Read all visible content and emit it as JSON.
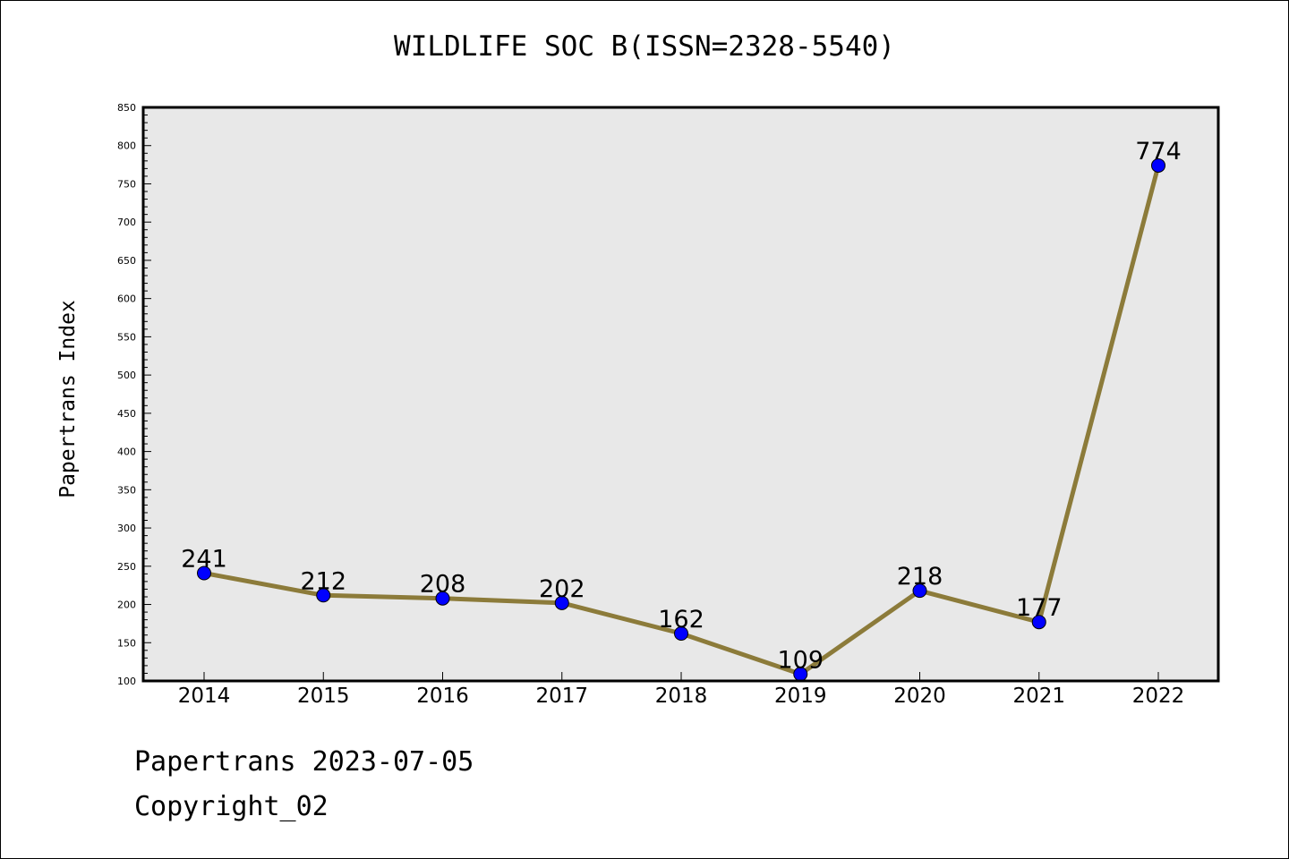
{
  "chart_data": {
    "type": "line",
    "title": "WILDLIFE SOC B(ISSN=2328-5540)",
    "ylabel": "Papertrans Index",
    "xlabel": "",
    "categories": [
      "2014",
      "2015",
      "2016",
      "2017",
      "2018",
      "2019",
      "2020",
      "2021",
      "2022"
    ],
    "values": [
      241,
      212,
      208,
      202,
      162,
      109,
      218,
      177,
      774
    ],
    "ylim": [
      100,
      850
    ],
    "yticks": [
      100,
      150,
      200,
      250,
      300,
      350,
      400,
      450,
      500,
      550,
      600,
      650,
      700,
      750,
      800,
      850
    ],
    "grid": false,
    "line_color": "#8c7b3a",
    "marker_color": "#0000ff",
    "plot_background": "#e8e8e8"
  },
  "footer": {
    "date": "Papertrans 2023-07-05",
    "copyright": "Copyright_02"
  }
}
